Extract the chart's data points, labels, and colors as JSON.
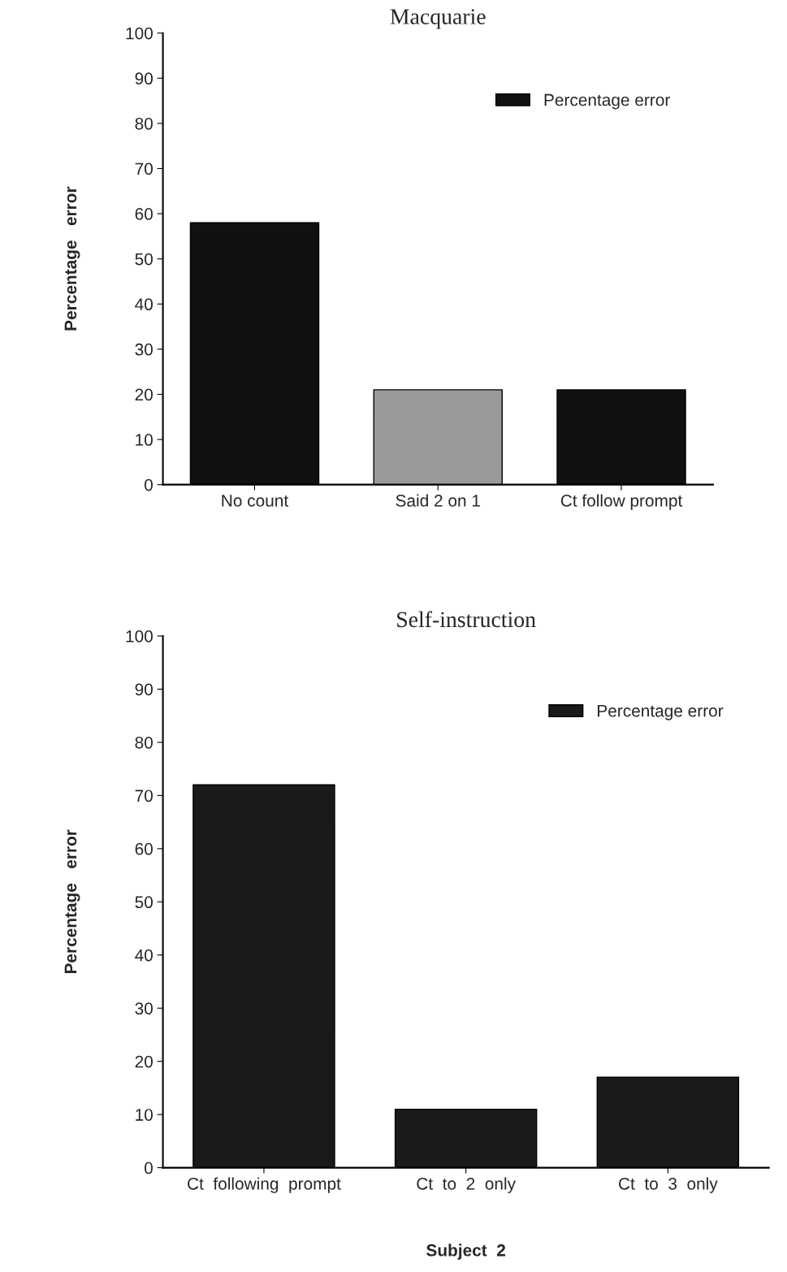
{
  "chart_data": [
    {
      "type": "bar",
      "title": "Macquarie",
      "ylabel": "Percentage   error",
      "categories": [
        "No count",
        "Said 2 on 1",
        "Ct follow prompt"
      ],
      "series": [
        {
          "name": "Percentage error",
          "color": "#111111",
          "colors": [
            "#111111",
            "#9a9a9a",
            "#111111"
          ],
          "values": [
            58,
            21,
            21
          ]
        }
      ],
      "ylim": [
        0,
        100
      ],
      "yticks": [
        0,
        10,
        20,
        30,
        40,
        50,
        60,
        70,
        80,
        90,
        100
      ],
      "grid": false,
      "legend": "top right"
    },
    {
      "type": "bar",
      "title": "Self-instruction",
      "ylabel": "Percentage   error",
      "xlabel": "Subject  2",
      "categories": [
        "Ct  following  prompt",
        "Ct  to  2  only",
        "Ct  to  3  only"
      ],
      "series": [
        {
          "name": "Percentage error",
          "color": "#1a1a1a",
          "values": [
            72,
            11,
            17
          ]
        }
      ],
      "ylim": [
        0,
        100
      ],
      "yticks": [
        0,
        10,
        20,
        30,
        40,
        50,
        60,
        70,
        80,
        90,
        100
      ],
      "grid": false,
      "legend": "top right"
    }
  ]
}
